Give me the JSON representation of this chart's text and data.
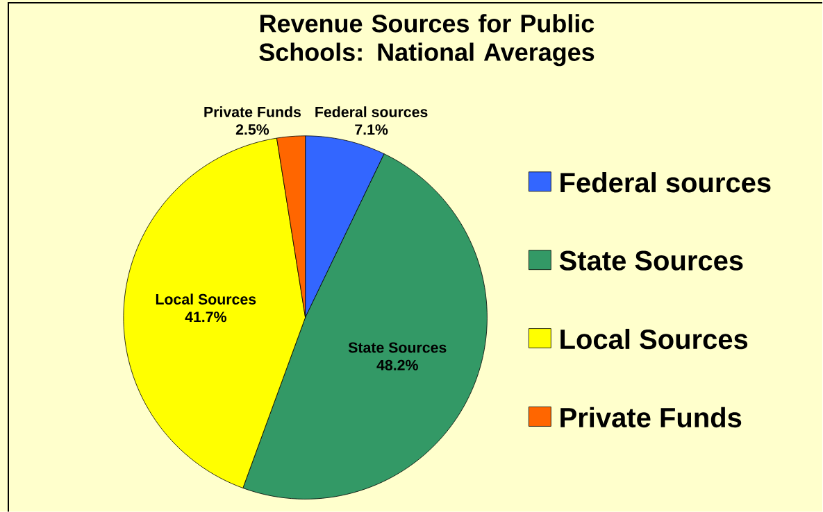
{
  "chart_data": {
    "type": "pie",
    "title": "Revenue Sources for Public Schools: National Averages",
    "categories": [
      "Federal sources",
      "State Sources",
      "Local Sources",
      "Private Funds"
    ],
    "values": [
      7.1,
      48.2,
      41.7,
      2.5
    ],
    "colors": [
      "#3366ff",
      "#339966",
      "#ffff00",
      "#ff6600"
    ],
    "value_labels": [
      "7.1%",
      "48.2%",
      "41.7%",
      "2.5%"
    ],
    "legend": "right"
  }
}
